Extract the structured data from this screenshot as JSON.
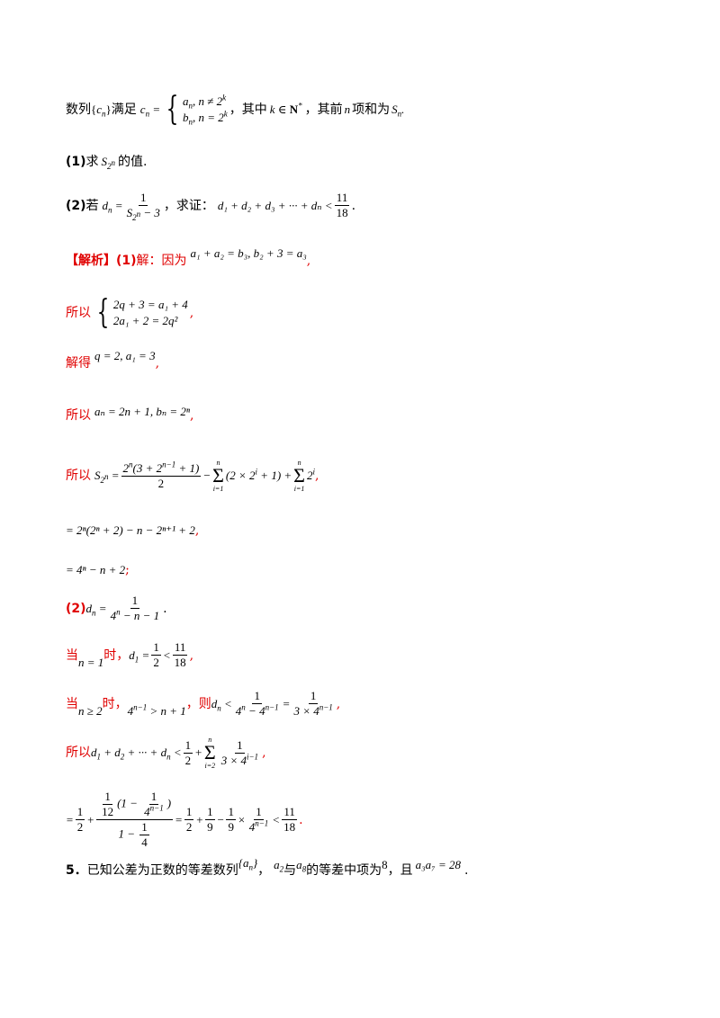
{
  "intro": {
    "prefix": "数列",
    "set_symbol": "{c",
    "satisfy": "满足",
    "case1": "a",
    "case1_cond": ", n ≠ 2",
    "case2": "b",
    "case2_cond": ", n = 2",
    "where": "，其中",
    "k_in_N": "k ∈ N",
    "sum_text": "，其前",
    "n_letter": "n",
    "sum_text2": "项和为",
    "S_n": "S"
  },
  "q1": {
    "label": "(1)",
    "text": "求",
    "text2": "的值."
  },
  "q2": {
    "label": "(2)",
    "text": "若",
    "prove": "，求证：",
    "ineq": "d₁ + d₂ + d₃ + ··· + dₙ <"
  },
  "solution": {
    "bracket_label": "【解析】",
    "part1_label": "(1)",
    "part1_text": "解：因为",
    "eq1": "a₁ + a₂ = b₃, b₂ + 3 = a₃",
    "so": "所以",
    "sys1": "2q + 3 = a₁ + 4",
    "sys2": "2a₁ + 2 = 2q²",
    "solve": "解得",
    "eq_q": "q = 2, a₁ = 3",
    "eq_an": "aₙ = 2n + 1, bₙ = 2ⁿ",
    "eq_line6": "= 2ⁿ(2ⁿ + 2) − n − 2ⁿ⁺¹ + 2",
    "eq_line7": "= 4ⁿ − n + 2",
    "part2_label": "(2)",
    "when": "当",
    "then": "时，",
    "then2": "，则",
    "so2": "所以"
  },
  "problem5": {
    "number": "5．",
    "text1": "已知公差为正数的等差数列",
    "text2": "，",
    "text3": "与",
    "text4": "的等差中项为",
    "value8": "8",
    "text5": "，且",
    "eq": "a₃a₇ = 28",
    "end": "."
  }
}
